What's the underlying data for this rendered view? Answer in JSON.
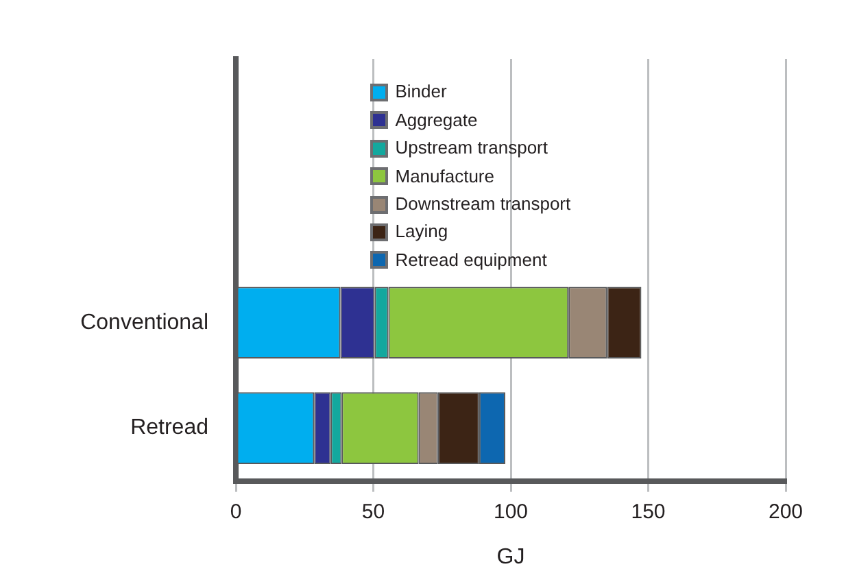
{
  "chart_data": {
    "type": "bar",
    "orientation": "horizontal",
    "stacked": true,
    "xlabel": "GJ",
    "categories": [
      null,
      null,
      "Conventional",
      "Retread"
    ],
    "series": [
      {
        "name": "Binder",
        "color": "#00aeef",
        "values": [
          null,
          null,
          38,
          28.5
        ]
      },
      {
        "name": "Aggregate",
        "color": "#2e3192",
        "values": [
          null,
          null,
          12.5,
          6
        ]
      },
      {
        "name": "Upstream transport",
        "color": "#13a89e",
        "values": [
          null,
          null,
          5,
          4
        ]
      },
      {
        "name": "Manufacture",
        "color": "#8dc63f",
        "values": [
          null,
          null,
          65.5,
          28
        ]
      },
      {
        "name": "Downstream transport",
        "color": "#998675",
        "values": [
          null,
          null,
          14,
          7
        ]
      },
      {
        "name": "Laying",
        "color": "#3c2415",
        "values": [
          null,
          null,
          12.5,
          15
        ]
      },
      {
        "name": "Retread equipment",
        "color": "#0d67b0",
        "values": [
          null,
          null,
          null,
          9.5
        ]
      }
    ],
    "xlim": [
      0,
      200
    ],
    "xticks": [
      0,
      50,
      100,
      150,
      200
    ],
    "grid": "x",
    "legend": "top"
  }
}
